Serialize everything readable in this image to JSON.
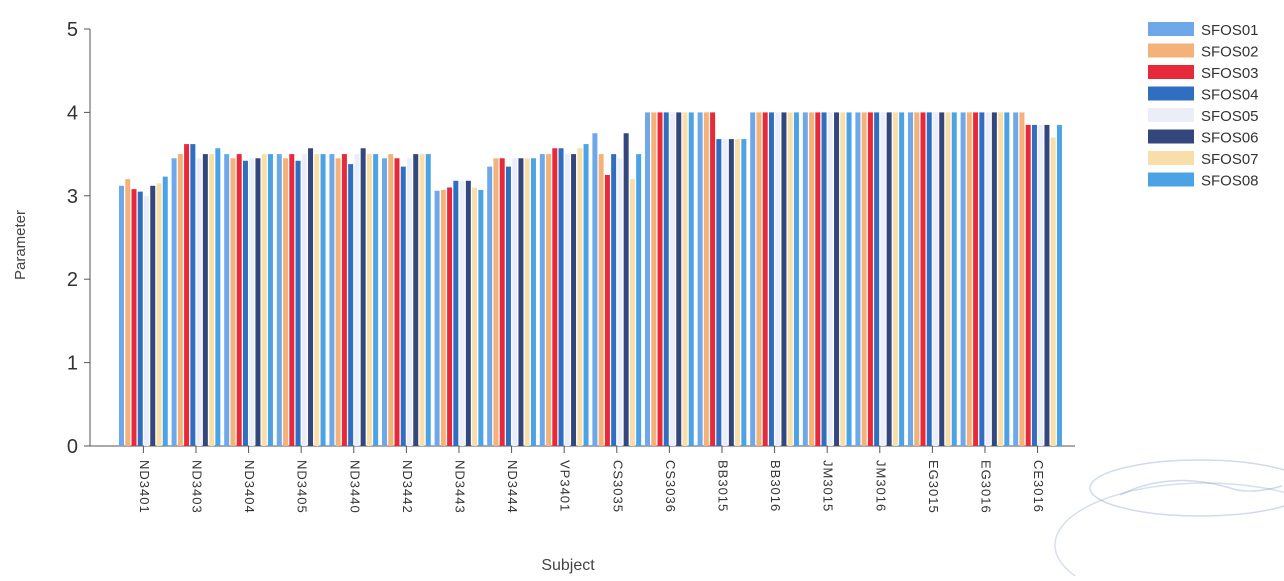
{
  "chart_data": {
    "type": "bar",
    "xlabel": "Subject",
    "ylabel": "Parameter",
    "ylim": [
      0,
      5
    ],
    "yticks": [
      0,
      1,
      2,
      3,
      4,
      5
    ],
    "grid": false,
    "legend_position": "top-right",
    "categories": [
      "ND3401",
      "ND3403",
      "ND3404",
      "ND3405",
      "ND3440",
      "ND3442",
      "ND3443",
      "ND3444",
      "VP3401",
      "CS3035",
      "CS3036",
      "BB3015",
      "BB3016",
      "JM3015",
      "JM3016",
      "EG3015",
      "EG3016",
      "CE3016"
    ],
    "series": [
      {
        "name": "SFOS01",
        "color": "#6fa8e8",
        "values": [
          3.12,
          3.45,
          3.5,
          3.5,
          3.5,
          3.45,
          3.06,
          3.35,
          3.5,
          3.75,
          4.0,
          4.0,
          4.0,
          4.0,
          4.0,
          4.0,
          4.0,
          4.0
        ]
      },
      {
        "name": "SFOS02",
        "color": "#f4b27a",
        "values": [
          3.2,
          3.5,
          3.45,
          3.45,
          3.45,
          3.5,
          3.07,
          3.45,
          3.5,
          3.5,
          4.0,
          4.0,
          4.0,
          4.0,
          4.0,
          4.0,
          4.0,
          4.0
        ]
      },
      {
        "name": "SFOS03",
        "color": "#e8293a",
        "values": [
          3.08,
          3.62,
          3.5,
          3.5,
          3.5,
          3.45,
          3.1,
          3.45,
          3.57,
          3.25,
          4.0,
          4.0,
          4.0,
          4.0,
          4.0,
          4.0,
          4.0,
          3.85
        ]
      },
      {
        "name": "SFOS04",
        "color": "#2f6ec0",
        "values": [
          3.05,
          3.62,
          3.42,
          3.42,
          3.38,
          3.35,
          3.18,
          3.35,
          3.57,
          3.5,
          4.0,
          3.68,
          4.0,
          4.0,
          4.0,
          4.0,
          4.0,
          3.85
        ]
      },
      {
        "name": "SFOS05",
        "color": "#ebeef8",
        "values": [
          3.0,
          3.45,
          3.45,
          3.5,
          3.5,
          3.45,
          3.18,
          3.45,
          3.5,
          3.45,
          4.0,
          3.68,
          4.0,
          4.0,
          4.0,
          4.0,
          4.0,
          3.85
        ]
      },
      {
        "name": "SFOS06",
        "color": "#34477d",
        "values": [
          3.12,
          3.5,
          3.45,
          3.57,
          3.57,
          3.5,
          3.18,
          3.45,
          3.5,
          3.75,
          4.0,
          3.68,
          4.0,
          4.0,
          4.0,
          4.0,
          4.0,
          3.85
        ]
      },
      {
        "name": "SFOS07",
        "color": "#f8dfaa",
        "values": [
          3.15,
          3.5,
          3.5,
          3.5,
          3.5,
          3.5,
          3.1,
          3.45,
          3.57,
          3.2,
          4.0,
          3.68,
          4.0,
          4.0,
          4.0,
          4.0,
          4.0,
          3.7
        ]
      },
      {
        "name": "SFOS08",
        "color": "#4ba3e6",
        "values": [
          3.23,
          3.57,
          3.5,
          3.5,
          3.5,
          3.5,
          3.07,
          3.45,
          3.62,
          3.5,
          4.0,
          3.68,
          4.0,
          4.0,
          4.0,
          4.0,
          4.0,
          3.85
        ]
      }
    ]
  },
  "colors": {
    "axis": "#555555",
    "tick_text": "#333333",
    "label_text": "#444444",
    "stamp": "#7a96c8"
  }
}
